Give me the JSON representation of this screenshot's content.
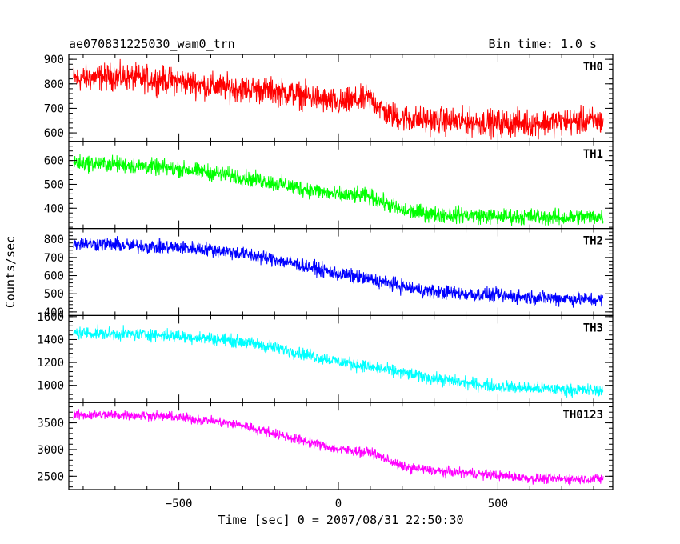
{
  "chart_data": {
    "type": "line",
    "title": "ae070831225030_wam0_trn",
    "bin_time": "Bin time: 1.0 s",
    "xlabel": "Time [sec] 0 = 2007/08/31 22:50:30",
    "ylabel": "Counts/sec",
    "xlim": [
      -845,
      860
    ],
    "xticks": [
      -500,
      0,
      500
    ],
    "grid": false,
    "panels": [
      {
        "name": "TH0",
        "color": "#ff0000",
        "ylim": [
          565,
          920
        ],
        "yticks": [
          600,
          700,
          800,
          900
        ],
        "x": [
          -830,
          -700,
          -600,
          -500,
          -400,
          -300,
          -200,
          -100,
          0,
          100,
          150,
          200,
          300,
          400,
          500,
          600,
          700,
          830
        ],
        "y": [
          820,
          830,
          820,
          810,
          790,
          780,
          770,
          750,
          720,
          740,
          680,
          660,
          650,
          645,
          640,
          640,
          645,
          650
        ],
        "noise": 45
      },
      {
        "name": "TH1",
        "color": "#00ff00",
        "ylim": [
          315,
          680
        ],
        "yticks": [
          400,
          500,
          600
        ],
        "x": [
          -830,
          -700,
          -600,
          -500,
          -400,
          -300,
          -200,
          -100,
          0,
          100,
          150,
          200,
          300,
          400,
          500,
          600,
          700,
          830
        ],
        "y": [
          590,
          585,
          575,
          565,
          550,
          530,
          505,
          480,
          455,
          450,
          420,
          390,
          375,
          370,
          365,
          365,
          360,
          365
        ],
        "noise": 28
      },
      {
        "name": "TH2",
        "color": "#0000ff",
        "ylim": [
          380,
          860
        ],
        "yticks": [
          400,
          500,
          600,
          700,
          800
        ],
        "x": [
          -830,
          -700,
          -600,
          -500,
          -400,
          -300,
          -200,
          -100,
          0,
          100,
          200,
          300,
          400,
          500,
          600,
          700,
          830
        ],
        "y": [
          780,
          770,
          760,
          755,
          745,
          720,
          690,
          650,
          610,
          580,
          540,
          510,
          500,
          490,
          480,
          475,
          465
        ],
        "noise": 32
      },
      {
        "name": "TH3",
        "color": "#00ffff",
        "ylim": [
          850,
          1610
        ],
        "yticks": [
          1000,
          1200,
          1400,
          1600
        ],
        "x": [
          -830,
          -700,
          -600,
          -500,
          -400,
          -300,
          -200,
          -100,
          0,
          100,
          200,
          300,
          400,
          500,
          600,
          700,
          830
        ],
        "y": [
          1460,
          1450,
          1445,
          1430,
          1410,
          1380,
          1330,
          1270,
          1210,
          1160,
          1110,
          1060,
          1020,
          990,
          975,
          965,
          955
        ],
        "noise": 45
      },
      {
        "name": "TH0123",
        "color": "#ff00ff",
        "ylim": [
          2250,
          3880
        ],
        "yticks": [
          2500,
          3000,
          3500
        ],
        "x": [
          -830,
          -700,
          -600,
          -500,
          -400,
          -300,
          -200,
          -100,
          0,
          100,
          150,
          200,
          300,
          400,
          500,
          600,
          700,
          830
        ],
        "y": [
          3650,
          3650,
          3640,
          3600,
          3540,
          3450,
          3300,
          3150,
          3000,
          2950,
          2820,
          2680,
          2600,
          2560,
          2520,
          2460,
          2450,
          2450
        ],
        "noise": 75
      }
    ]
  }
}
